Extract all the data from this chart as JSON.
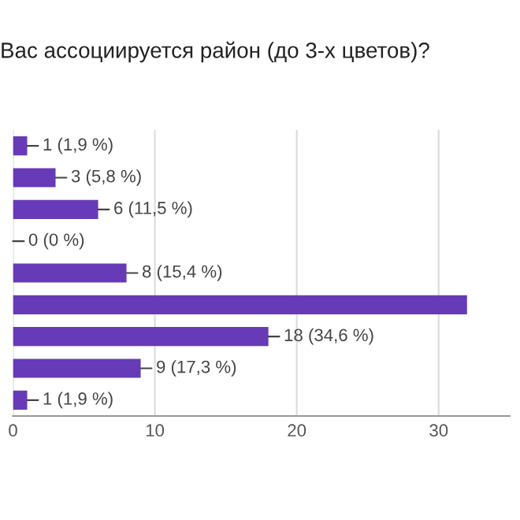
{
  "chart_data": {
    "type": "bar",
    "orientation": "horizontal",
    "title": "Вас ассоциируется район (до 3-х цветов)?",
    "categories": [
      null,
      null,
      null,
      null,
      null,
      null,
      null,
      null,
      null
    ],
    "values": [
      1,
      3,
      6,
      0,
      8,
      32,
      18,
      9,
      1
    ],
    "value_labels": [
      "1 (1,9 %)",
      "3 (5,8 %)",
      "6 (11,5 %)",
      "0 (0 %)",
      "8 (15,4 %)",
      null,
      "18 (34,6 %)",
      "9 (17,3 %)",
      "1 (1,9 %)"
    ],
    "color": "#673ab7",
    "xlim": [
      0,
      35
    ],
    "xticks": [
      0,
      10,
      20,
      30
    ],
    "grid": "x"
  }
}
